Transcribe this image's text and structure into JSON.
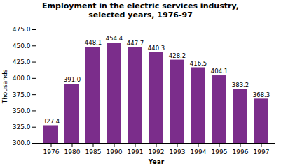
{
  "chart_data": {
    "type": "bar",
    "title": "Employment in the electric services industry,\nselected years, 1976-97",
    "xlabel": "Year",
    "ylabel": "Thousands",
    "categories": [
      "1976",
      "1980",
      "1985",
      "1990",
      "1991",
      "1992",
      "1993",
      "1994",
      "1995",
      "1996",
      "1997"
    ],
    "values": [
      327.4,
      391.0,
      448.1,
      454.4,
      447.7,
      440.3,
      428.2,
      416.5,
      404.1,
      383.2,
      368.3
    ],
    "value_labels": [
      "327.4",
      "391.0",
      "448.1",
      "454.4",
      "447.7",
      "440.3",
      "428.2",
      "416.5",
      "404.1",
      "383.2",
      "368.3"
    ],
    "color": "#7B2D8B",
    "ylim": [
      300.0,
      475.0
    ],
    "yticks": [
      {
        "value": 300,
        "label": "300.0"
      },
      {
        "value": 325,
        "label": "325.0"
      },
      {
        "value": 350,
        "label": "350.0"
      },
      {
        "value": 375,
        "label": "375.0"
      },
      {
        "value": 400,
        "label": "400.0"
      },
      {
        "value": 425,
        "label": "425.0"
      },
      {
        "value": 450,
        "label": "450.0"
      },
      {
        "value": 475,
        "label": "475.0"
      }
    ],
    "grid": false,
    "data_labels": true
  }
}
